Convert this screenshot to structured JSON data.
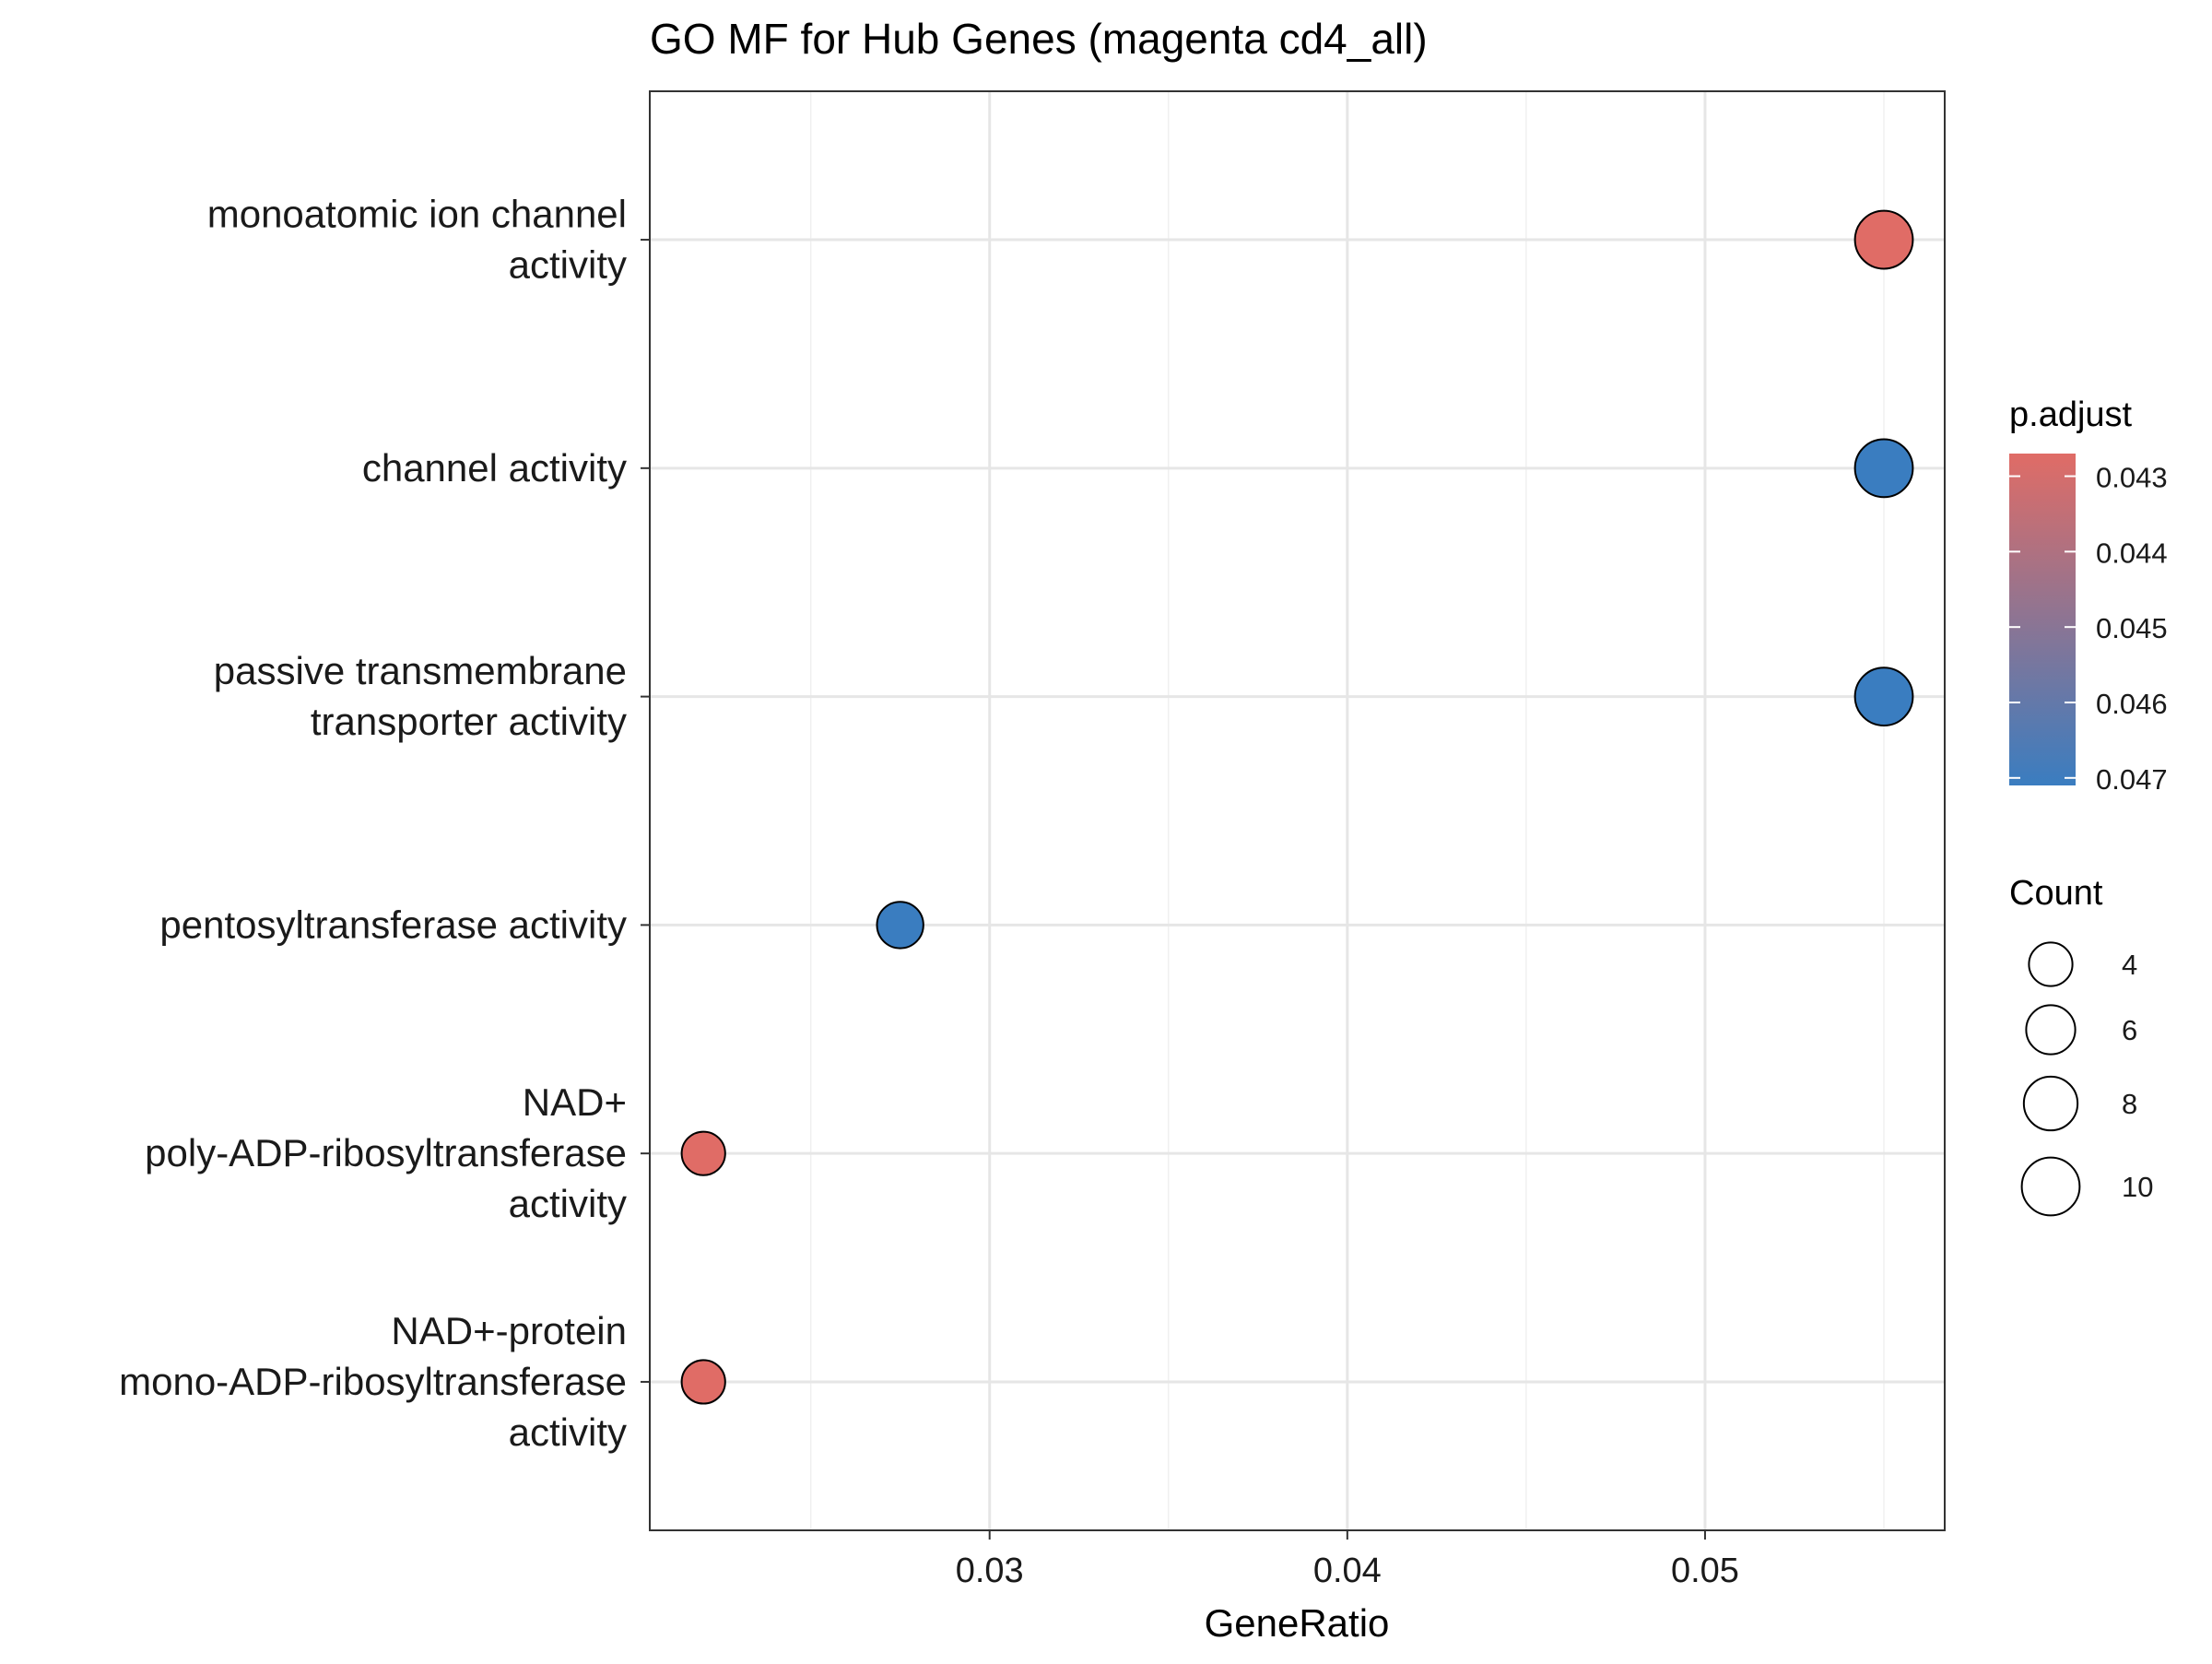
{
  "chart_data": {
    "type": "scatter",
    "title": "GO MF for Hub Genes (magenta cd4_all)",
    "xlabel": "GeneRatio",
    "ylabel": "",
    "xlim": [
      0.0205,
      0.0567
    ],
    "x_ticks": [
      0.03,
      0.04,
      0.05
    ],
    "x_tick_labels": [
      "0.03",
      "0.04",
      "0.05"
    ],
    "grid": true,
    "legend_placement": "right",
    "categories": [
      {
        "lines": [
          "monoatomic ion channel",
          "activity"
        ]
      },
      {
        "lines": [
          "channel activity"
        ]
      },
      {
        "lines": [
          "passive transmembrane",
          "transporter activity"
        ]
      },
      {
        "lines": [
          "pentosyltransferase activity"
        ]
      },
      {
        "lines": [
          "NAD+",
          "poly-ADP-ribosyltransferase",
          "activity"
        ]
      },
      {
        "lines": [
          "NAD+-protein",
          "mono-ADP-ribosyltransferase",
          "activity"
        ]
      }
    ],
    "points": [
      {
        "term": "monoatomic ion channel activity",
        "gene_ratio": 0.055,
        "count": 10,
        "p_adjust": 0.0427
      },
      {
        "term": "channel activity",
        "gene_ratio": 0.055,
        "count": 10,
        "p_adjust": 0.0471
      },
      {
        "term": "passive transmembrane transporter activity",
        "gene_ratio": 0.055,
        "count": 10,
        "p_adjust": 0.0471
      },
      {
        "term": "pentosyltransferase activity",
        "gene_ratio": 0.0275,
        "count": 5,
        "p_adjust": 0.0471
      },
      {
        "term": "NAD+ poly-ADP-ribosyltransferase activity",
        "gene_ratio": 0.022,
        "count": 4,
        "p_adjust": 0.0427
      },
      {
        "term": "NAD+-protein mono-ADP-ribosyltransferase activity",
        "gene_ratio": 0.022,
        "count": 4,
        "p_adjust": 0.0427
      }
    ],
    "color_legend": {
      "title": "p.adjust",
      "range": [
        0.0427,
        0.0471
      ],
      "low_color": "#e06c66",
      "high_color": "#3a7dc0",
      "ticks": [
        0.043,
        0.044,
        0.045,
        0.046,
        0.047
      ],
      "tick_labels": [
        "0.043",
        "0.044",
        "0.045",
        "0.046",
        "0.047"
      ]
    },
    "size_legend": {
      "title": "Count",
      "values": [
        4,
        6,
        8,
        10
      ],
      "labels": [
        "4",
        "6",
        "8",
        "10"
      ]
    }
  }
}
